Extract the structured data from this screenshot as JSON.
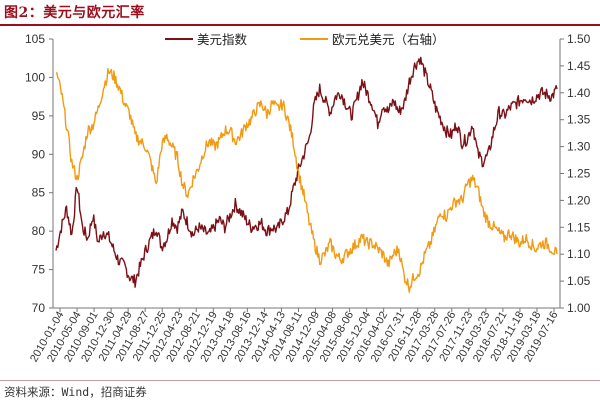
{
  "figure_title": "图2：美元与欧元汇率",
  "source_note": "资料来源：Wind，招商证券",
  "chart_data": {
    "type": "line",
    "title": "",
    "x_tick_labels": [
      "2010-01-04",
      "2010-05-04",
      "2010-09-01",
      "2010-12-30",
      "2011-04-29",
      "2011-08-27",
      "2011-12-25",
      "2012-04-23",
      "2012-08-21",
      "2012-12-19",
      "2013-04-18",
      "2013-08-16",
      "2013-12-14",
      "2014-04-13",
      "2014-08-11",
      "2014-12-09",
      "2015-04-08",
      "2015-08-06",
      "2015-12-04",
      "2016-04-02",
      "2016-07-31",
      "2016-11-28",
      "2017-03-28",
      "2017-07-26",
      "2017-11-23",
      "2018-03-23",
      "2018-07-21",
      "2018-11-18",
      "2019-03-18",
      "2019-07-16"
    ],
    "y_left": {
      "range": [
        70,
        105
      ],
      "ticks": [
        70,
        75,
        80,
        85,
        90,
        95,
        100,
        105
      ]
    },
    "y_right": {
      "range": [
        1.0,
        1.5
      ],
      "ticks": [
        "1.00",
        "1.05",
        "1.10",
        "1.15",
        "1.20",
        "1.25",
        "1.30",
        "1.35",
        "1.40",
        "1.45",
        "1.50"
      ]
    },
    "legend_position": "top",
    "series": [
      {
        "name": "美元指数",
        "axis": "left",
        "color": "#7b1016",
        "values": [
          77.5,
          80.5,
          83.0,
          79.5,
          86.0,
          80.5,
          79.0,
          82.0,
          78.5,
          80.0,
          79.2,
          77.5,
          76.0,
          75.5,
          74.0,
          73.5,
          75.5,
          77.5,
          79.0,
          80.5,
          78.0,
          79.0,
          81.5,
          80.5,
          82.5,
          81.0,
          79.5,
          80.5,
          80.0,
          79.5,
          80.5,
          81.5,
          80.5,
          82.0,
          83.5,
          82.5,
          81.5,
          80.5,
          80.8,
          81.0,
          80.0,
          80.5,
          80.2,
          81.5,
          82.5,
          85.5,
          88.0,
          90.0,
          92.0,
          96.5,
          98.5,
          97.0,
          95.5,
          97.5,
          98.0,
          96.5,
          95.0,
          97.0,
          99.5,
          98.0,
          96.5,
          94.0,
          96.5,
          95.5,
          97.0,
          95.5,
          96.5,
          99.5,
          101.5,
          102.5,
          100.5,
          98.5,
          96.0,
          94.5,
          93.0,
          92.5,
          94.0,
          91.5,
          92.0,
          94.0,
          90.0,
          89.0,
          90.0,
          93.0,
          95.5,
          95.0,
          96.0,
          96.5,
          97.0,
          97.5,
          97.0,
          97.5,
          98.0,
          97.8,
          97.5,
          98.5
        ]
      },
      {
        "name": "欧元兑美元（右轴）",
        "axis": "right",
        "color": "#f29a12",
        "values": [
          1.44,
          1.4,
          1.34,
          1.27,
          1.24,
          1.28,
          1.33,
          1.34,
          1.37,
          1.41,
          1.44,
          1.43,
          1.41,
          1.38,
          1.36,
          1.32,
          1.31,
          1.3,
          1.27,
          1.23,
          1.3,
          1.32,
          1.3,
          1.28,
          1.23,
          1.21,
          1.24,
          1.26,
          1.29,
          1.31,
          1.3,
          1.31,
          1.33,
          1.33,
          1.31,
          1.32,
          1.34,
          1.35,
          1.37,
          1.38,
          1.36,
          1.38,
          1.37,
          1.38,
          1.35,
          1.31,
          1.25,
          1.21,
          1.16,
          1.12,
          1.09,
          1.1,
          1.12,
          1.1,
          1.09,
          1.1,
          1.11,
          1.12,
          1.13,
          1.12,
          1.12,
          1.11,
          1.1,
          1.08,
          1.1,
          1.11,
          1.06,
          1.04,
          1.06,
          1.07,
          1.1,
          1.12,
          1.15,
          1.18,
          1.17,
          1.19,
          1.2,
          1.2,
          1.23,
          1.24,
          1.22,
          1.18,
          1.16,
          1.15,
          1.14,
          1.13,
          1.14,
          1.13,
          1.12,
          1.13,
          1.12,
          1.11,
          1.12,
          1.12,
          1.11,
          1.1
        ]
      }
    ]
  }
}
